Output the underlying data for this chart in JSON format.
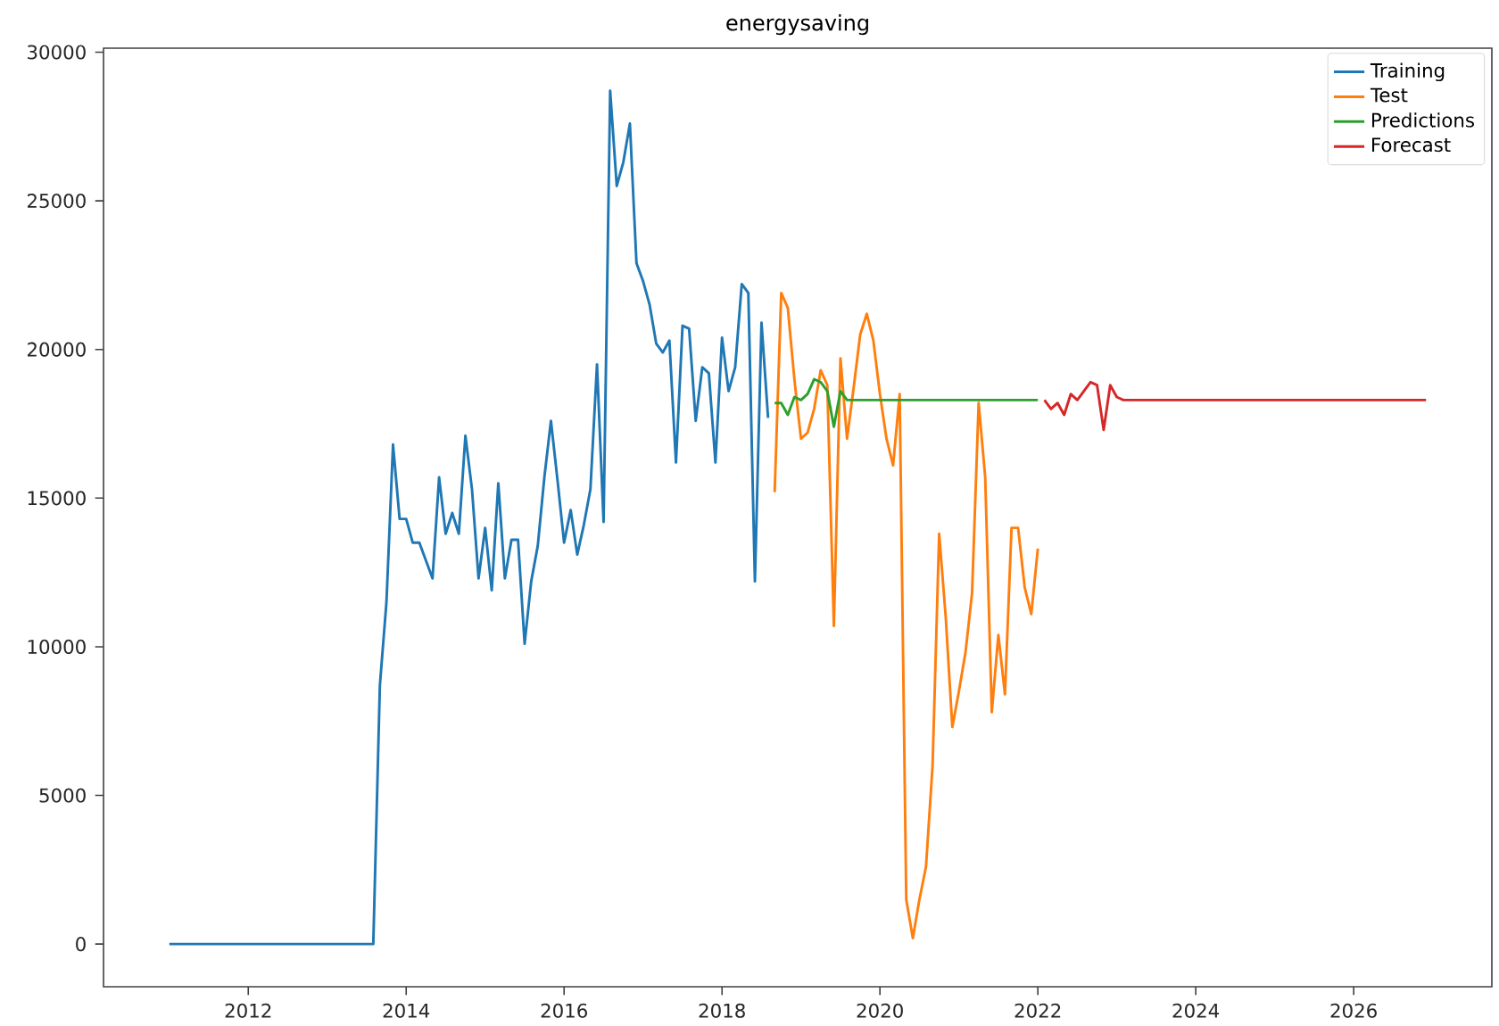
{
  "chart_data": {
    "type": "line",
    "title": "energysaving",
    "xlim": [
      "2010-03",
      "2027-10"
    ],
    "ylim": [
      -1435,
      30135
    ],
    "xticks": [
      "2012",
      "2014",
      "2016",
      "2018",
      "2020",
      "2022",
      "2024",
      "2026"
    ],
    "yticks": [
      0,
      5000,
      10000,
      15000,
      20000,
      25000,
      30000
    ],
    "grid": false,
    "legend": "top right",
    "line_style": "solid",
    "series": [
      {
        "name": "Training",
        "color": "#1f77b4",
        "x": [
          "2011-01",
          "2011-07",
          "2012-01",
          "2012-07",
          "2013-01",
          "2013-08",
          "2013-09",
          "2013-10",
          "2013-11",
          "2013-12",
          "2014-01",
          "2014-02",
          "2014-03",
          "2014-04",
          "2014-05",
          "2014-06",
          "2014-07",
          "2014-08",
          "2014-09",
          "2014-10",
          "2014-11",
          "2014-12",
          "2015-01",
          "2015-02",
          "2015-03",
          "2015-04",
          "2015-05",
          "2015-06",
          "2015-07",
          "2015-08",
          "2015-09",
          "2015-10",
          "2015-11",
          "2015-12",
          "2016-01",
          "2016-02",
          "2016-03",
          "2016-04",
          "2016-05",
          "2016-06",
          "2016-07",
          "2016-08",
          "2016-09",
          "2016-10",
          "2016-11",
          "2016-12",
          "2017-01",
          "2017-02",
          "2017-03",
          "2017-04",
          "2017-05",
          "2017-06",
          "2017-07",
          "2017-08",
          "2017-09",
          "2017-10",
          "2017-11",
          "2017-12",
          "2018-01",
          "2018-02",
          "2018-03",
          "2018-04",
          "2018-05",
          "2018-06",
          "2018-07",
          "2018-08"
        ],
        "values": [
          0,
          0,
          0,
          0,
          0,
          0,
          8700,
          11500,
          16800,
          14300,
          14300,
          13500,
          13500,
          12900,
          12300,
          15700,
          13800,
          14500,
          13800,
          17100,
          15300,
          12300,
          14000,
          11900,
          15500,
          12300,
          13600,
          13600,
          10100,
          12200,
          13400,
          15700,
          17600,
          15600,
          13500,
          14600,
          13100,
          14100,
          15300,
          19500,
          14200,
          28700,
          25500,
          26300,
          27600,
          22900,
          22300,
          21500,
          20200,
          19900,
          20300,
          16200,
          20800,
          20700,
          17600,
          19400,
          19200,
          16200,
          20400,
          18600,
          19400,
          22200,
          21900,
          12200,
          20900,
          17700
        ]
      },
      {
        "name": "Test",
        "color": "#ff7f0e",
        "x": [
          "2018-09",
          "2018-10",
          "2018-11",
          "2018-12",
          "2019-01",
          "2019-02",
          "2019-03",
          "2019-04",
          "2019-05",
          "2019-06",
          "2019-07",
          "2019-08",
          "2019-09",
          "2019-10",
          "2019-11",
          "2019-12",
          "2020-01",
          "2020-02",
          "2020-03",
          "2020-04",
          "2020-05",
          "2020-06",
          "2020-07",
          "2020-08",
          "2020-09",
          "2020-10",
          "2020-11",
          "2020-12",
          "2021-01",
          "2021-02",
          "2021-03",
          "2021-04",
          "2021-05",
          "2021-06",
          "2021-07",
          "2021-08",
          "2021-09",
          "2021-10",
          "2021-11",
          "2021-12",
          "2022-01"
        ],
        "values": [
          15200,
          21900,
          21400,
          19000,
          17000,
          17200,
          18000,
          19300,
          18800,
          10700,
          19700,
          17000,
          18700,
          20500,
          21200,
          20300,
          18500,
          17000,
          16100,
          18500,
          1500,
          200,
          1500,
          2600,
          6000,
          13800,
          11000,
          7300,
          8500,
          9800,
          11800,
          18200,
          15700,
          7800,
          10400,
          8400,
          14000,
          14000,
          12000,
          11100,
          13300
        ]
      },
      {
        "name": "Predictions",
        "color": "#2ca02c",
        "x": [
          "2018-09",
          "2018-10",
          "2018-11",
          "2018-12",
          "2019-01",
          "2019-02",
          "2019-03",
          "2019-04",
          "2019-05",
          "2019-06",
          "2019-07",
          "2019-08",
          "2019-09",
          "2020-06",
          "2021-03",
          "2022-01"
        ],
        "values": [
          18200,
          18200,
          17800,
          18400,
          18300,
          18500,
          19000,
          18900,
          18600,
          17400,
          18600,
          18300,
          18300,
          18300,
          18300,
          18300
        ]
      },
      {
        "name": "Forecast",
        "color": "#d62728",
        "x": [
          "2022-02",
          "2022-03",
          "2022-04",
          "2022-05",
          "2022-06",
          "2022-07",
          "2022-08",
          "2022-09",
          "2022-10",
          "2022-11",
          "2022-12",
          "2023-01",
          "2023-02",
          "2024-06",
          "2025-09",
          "2026-12"
        ],
        "values": [
          18300,
          18000,
          18200,
          17800,
          18500,
          18300,
          18600,
          18900,
          18800,
          17300,
          18800,
          18400,
          18300,
          18300,
          18300,
          18300
        ]
      }
    ]
  }
}
